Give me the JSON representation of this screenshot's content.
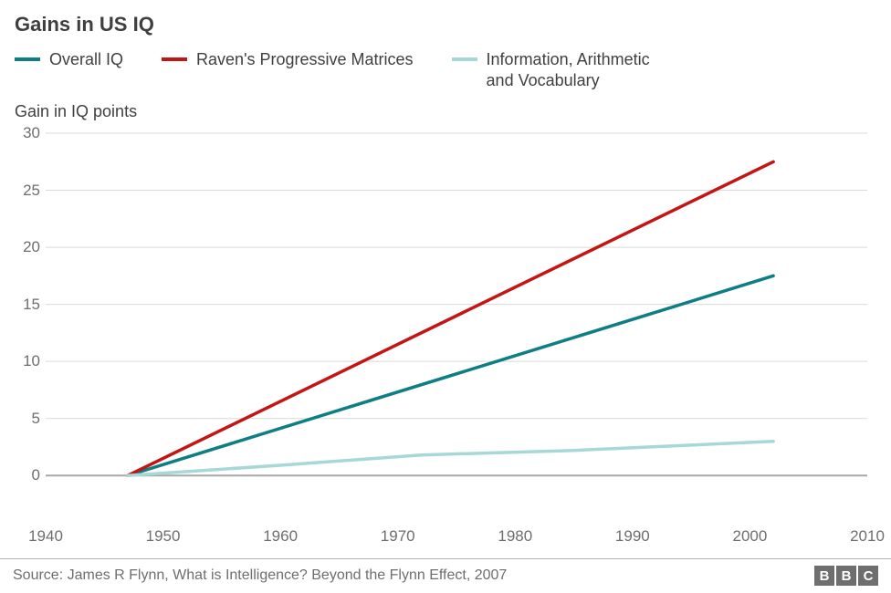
{
  "chart": {
    "type": "line",
    "title": "Gains in US IQ",
    "y_axis_title": "Gain in IQ points",
    "background_color": "#ffffff",
    "title_fontsize": 22,
    "title_color": "#3e3e3e",
    "label_fontsize": 18,
    "tick_fontsize": 17,
    "tick_color": "#6e6e6e",
    "gridline_color": "#d9d9d9",
    "zero_line_color": "#a8a8a8",
    "xlim": [
      1940,
      2010
    ],
    "ylim": [
      -1.5,
      30
    ],
    "x_ticks": [
      1940,
      1950,
      1960,
      1970,
      1980,
      1990,
      2000,
      2010
    ],
    "y_ticks": [
      0,
      5,
      10,
      15,
      20,
      25,
      30
    ],
    "line_width": 3.5,
    "series": [
      {
        "name": "Overall IQ",
        "color": "#0e7d84",
        "points": [
          [
            1947,
            0
          ],
          [
            2002,
            17.5
          ]
        ]
      },
      {
        "name": "Raven's Progressive Matrices",
        "color": "#c41515",
        "points": [
          [
            1947,
            0
          ],
          [
            2002,
            27.5
          ]
        ]
      },
      {
        "name": "Information, Arithmetic\nand Vocabulary",
        "color": "#a6d8d8",
        "points": [
          [
            1947,
            0
          ],
          [
            1960,
            0.9
          ],
          [
            1972,
            1.8
          ],
          [
            1985,
            2.2
          ],
          [
            2002,
            3.0
          ]
        ]
      }
    ],
    "footer": {
      "rule_color": "#b5b5b5",
      "source": "Source: James R Flynn, What is Intelligence? Beyond the Flynn Effect, 2007",
      "source_color": "#6e6e6e",
      "source_fontsize": 16,
      "brand_letters": [
        "B",
        "B",
        "C"
      ],
      "brand_bg": "#6e6e6e",
      "brand_fg": "#ffffff"
    }
  }
}
